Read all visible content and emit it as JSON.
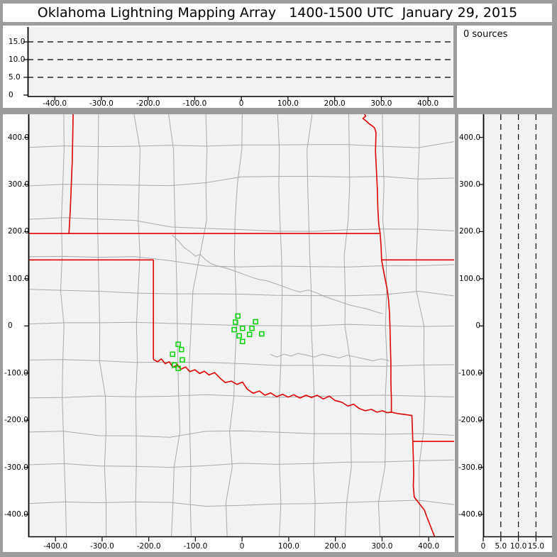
{
  "title": "Oklahoma Lightning Mapping Array   1400-1500 UTC  January 29, 2015",
  "sources_panel": {
    "text": "0 sources"
  },
  "colors": {
    "frame": "#9c9c9c",
    "panel": "#ffffff",
    "plot_bg": "#f2f2f2",
    "county_line": "#a8a8a8",
    "state_border": "#e00000",
    "station": "#00d400",
    "axis": "#000000"
  },
  "ticks": {
    "distance": [
      {
        "v": -400,
        "label": "-400.0"
      },
      {
        "v": -300,
        "label": "-300.0"
      },
      {
        "v": -200,
        "label": "-200.0"
      },
      {
        "v": -100,
        "label": "-100.0"
      },
      {
        "v": 0,
        "label": "0"
      },
      {
        "v": 100,
        "label": "100.0"
      },
      {
        "v": 200,
        "label": "200.0"
      },
      {
        "v": 300,
        "label": "300.0"
      },
      {
        "v": 400,
        "label": "400.0"
      }
    ],
    "altitude": [
      {
        "v": 0,
        "label": "0"
      },
      {
        "v": 5,
        "label": "5.0"
      },
      {
        "v": 10,
        "label": "10.0"
      },
      {
        "v": 15,
        "label": "15.0"
      }
    ]
  },
  "chart_data": [
    {
      "name": "altitude-vs-eastwest",
      "type": "scatter",
      "points": [],
      "x_range_km": [
        -458,
        454.5
      ],
      "alt_range_km": [
        0,
        19.6
      ],
      "dashed_gridlines_alt_km": [
        5,
        10,
        15
      ],
      "grid": "dashed-horizontal",
      "legend": "none"
    },
    {
      "name": "source-count",
      "type": "text",
      "value": "0 sources"
    },
    {
      "name": "plan-view-map",
      "type": "scatter",
      "x_range_km": [
        -458,
        454.5
      ],
      "y_range_km": [
        -448,
        449
      ],
      "county_grid": {
        "rows": 11,
        "cols": 11,
        "seed": 7
      },
      "stations_km": [
        [
          -9,
          21
        ],
        [
          -14,
          8
        ],
        [
          29,
          9
        ],
        [
          -17,
          -8
        ],
        [
          1,
          -5
        ],
        [
          21,
          -5
        ],
        [
          16,
          -18
        ],
        [
          -6,
          -21
        ],
        [
          42,
          -17
        ],
        [
          1,
          -33
        ],
        [
          -137,
          -39
        ],
        [
          -130,
          -50
        ],
        [
          -149,
          -60
        ],
        [
          -128,
          -72
        ],
        [
          -145,
          -83
        ],
        [
          -137,
          -90
        ]
      ],
      "state_borders_km": [
        [
          [
            -362,
            452
          ],
          [
            -363,
            400
          ],
          [
            -364,
            350
          ],
          [
            -366,
            300
          ],
          [
            -368,
            250
          ],
          [
            -371,
            196
          ]
        ],
        [
          [
            -458,
            196
          ],
          [
            296,
            196
          ]
        ],
        [
          [
            -458,
            140
          ],
          [
            -190,
            140
          ]
        ],
        [
          [
            -190,
            140
          ],
          [
            -190,
            -71
          ]
        ],
        [
          [
            -190,
            -71
          ],
          [
            -181,
            -76
          ],
          [
            -173,
            -70
          ],
          [
            -165,
            -80
          ],
          [
            -156,
            -76
          ],
          [
            -148,
            -88
          ],
          [
            -139,
            -82
          ],
          [
            -131,
            -92
          ],
          [
            -121,
            -87
          ],
          [
            -112,
            -97
          ],
          [
            -101,
            -93
          ],
          [
            -91,
            -101
          ],
          [
            -81,
            -96
          ],
          [
            -71,
            -104
          ],
          [
            -59,
            -99
          ],
          [
            -46,
            -112
          ],
          [
            -36,
            -120
          ],
          [
            -23,
            -117
          ],
          [
            -11,
            -124
          ],
          [
            1,
            -119
          ],
          [
            11,
            -134
          ],
          [
            24,
            -143
          ],
          [
            37,
            -138
          ],
          [
            49,
            -147
          ],
          [
            61,
            -142
          ],
          [
            74,
            -150
          ],
          [
            87,
            -145
          ],
          [
            99,
            -151
          ],
          [
            111,
            -146
          ],
          [
            124,
            -153
          ],
          [
            137,
            -147
          ],
          [
            149,
            -152
          ],
          [
            161,
            -147
          ],
          [
            174,
            -155
          ],
          [
            187,
            -149
          ],
          [
            199,
            -158
          ],
          [
            214,
            -162
          ],
          [
            227,
            -170
          ],
          [
            239,
            -166
          ],
          [
            251,
            -175
          ],
          [
            264,
            -180
          ],
          [
            277,
            -177
          ],
          [
            289,
            -183
          ],
          [
            301,
            -180
          ],
          [
            311,
            -184
          ],
          [
            320,
            -183
          ]
        ],
        [
          [
            261,
            452
          ],
          [
            265,
            445
          ],
          [
            259,
            440
          ],
          [
            267,
            434
          ],
          [
            272,
            429
          ],
          [
            278,
            425
          ],
          [
            284,
            420
          ],
          [
            287,
            410
          ],
          [
            286,
            370
          ],
          [
            288,
            330
          ],
          [
            290,
            290
          ],
          [
            291,
            250
          ],
          [
            293,
            215
          ],
          [
            296,
            196
          ],
          [
            298,
            168
          ],
          [
            299,
            140
          ],
          [
            303,
            118
          ],
          [
            307,
            98
          ],
          [
            311,
            78
          ],
          [
            314,
            55
          ],
          [
            316,
            28
          ],
          [
            317,
            0
          ],
          [
            318,
            -40
          ],
          [
            319,
            -80
          ],
          [
            319,
            -120
          ],
          [
            320,
            -155
          ],
          [
            320,
            -183
          ]
        ],
        [
          [
            299,
            140
          ],
          [
            464,
            140
          ]
        ],
        [
          [
            320,
            -183
          ],
          [
            334,
            -186
          ],
          [
            349,
            -188
          ],
          [
            364,
            -190
          ],
          [
            365,
            -218
          ],
          [
            366,
            -245
          ]
        ],
        [
          [
            366,
            -245
          ],
          [
            464,
            -245
          ]
        ],
        [
          [
            366,
            -245
          ],
          [
            367,
            -280
          ],
          [
            368,
            -312
          ],
          [
            367,
            -340
          ],
          [
            369,
            -363
          ],
          [
            377,
            -373
          ],
          [
            384,
            -382
          ],
          [
            391,
            -391
          ],
          [
            396,
            -405
          ],
          [
            402,
            -420
          ],
          [
            408,
            -435
          ],
          [
            414,
            -450
          ],
          [
            420,
            -465
          ],
          [
            426,
            -480
          ]
        ]
      ],
      "water_lines_km": [
        [
          [
            -150,
            193
          ],
          [
            -136,
            180
          ],
          [
            -124,
            166
          ],
          [
            -112,
            158
          ],
          [
            -100,
            148
          ],
          [
            -90,
            152
          ],
          [
            -80,
            142
          ],
          [
            -68,
            133
          ],
          [
            -55,
            128
          ],
          [
            -40,
            124
          ],
          [
            -26,
            120
          ],
          [
            -12,
            115
          ],
          [
            2,
            110
          ],
          [
            18,
            104
          ],
          [
            34,
            99
          ],
          [
            52,
            96
          ],
          [
            70,
            90
          ],
          [
            88,
            84
          ],
          [
            106,
            77
          ],
          [
            124,
            72
          ],
          [
            142,
            76
          ],
          [
            160,
            70
          ],
          [
            178,
            62
          ],
          [
            196,
            56
          ],
          [
            214,
            50
          ],
          [
            232,
            44
          ],
          [
            250,
            40
          ],
          [
            268,
            36
          ],
          [
            286,
            30
          ],
          [
            302,
            26
          ]
        ],
        [
          [
            60,
            -60
          ],
          [
            75,
            -66
          ],
          [
            90,
            -60
          ],
          [
            105,
            -64
          ],
          [
            120,
            -58
          ],
          [
            138,
            -62
          ],
          [
            155,
            -66
          ],
          [
            172,
            -60
          ],
          [
            190,
            -64
          ],
          [
            208,
            -68
          ],
          [
            226,
            -62
          ],
          [
            244,
            -66
          ],
          [
            262,
            -70
          ],
          [
            280,
            -74
          ],
          [
            298,
            -70
          ],
          [
            316,
            -74
          ]
        ]
      ]
    },
    {
      "name": "altitude-vs-northsouth",
      "type": "scatter",
      "points": [],
      "alt_range_km": [
        0,
        19.6
      ],
      "y_range_km": [
        -448,
        449
      ],
      "dashed_gridlines_alt_km": [
        5,
        10,
        15
      ],
      "grid": "dashed-vertical",
      "legend": "none"
    }
  ]
}
